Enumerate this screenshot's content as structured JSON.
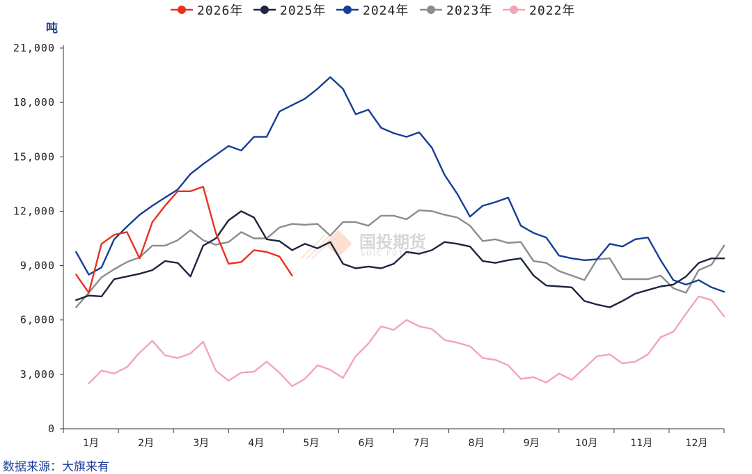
{
  "chart_data": {
    "type": "line",
    "ylabel": "吨",
    "ylim": [
      0,
      21000
    ],
    "yticks": [
      0,
      3000,
      6000,
      9000,
      12000,
      15000,
      18000,
      21000
    ],
    "ytick_labels": [
      "0",
      "3,000",
      "6,000",
      "9,000",
      "12,000",
      "15,000",
      "18,000",
      "21,000"
    ],
    "xlim": [
      0,
      52
    ],
    "month_labels": [
      "1月",
      "2月",
      "3月",
      "4月",
      "5月",
      "6月",
      "7月",
      "8月",
      "9月",
      "10月",
      "11月",
      "12月"
    ],
    "grid": false,
    "legend_position": "top",
    "series": [
      {
        "name": "2026年",
        "color": "#e8321e",
        "x": [
          1,
          2,
          3,
          4,
          5,
          6,
          7,
          8,
          9,
          10,
          11,
          12,
          13,
          14,
          15,
          16,
          17,
          18
        ],
        "values": [
          8500,
          7500,
          10200,
          10700,
          10850,
          9400,
          11400,
          12300,
          13100,
          13100,
          13350,
          10800,
          9100,
          9200,
          9850,
          9750,
          9500,
          8450
        ]
      },
      {
        "name": "2025年",
        "color": "#1c2541",
        "x": [
          1,
          2,
          3,
          4,
          5,
          6,
          7,
          8,
          9,
          10,
          11,
          12,
          13,
          14,
          15,
          16,
          17,
          18,
          19,
          20,
          21,
          22,
          23,
          24,
          25,
          26,
          27,
          28,
          29,
          30,
          31,
          32,
          33,
          34,
          35,
          36,
          37,
          38,
          39,
          40,
          41,
          42,
          43,
          44,
          45,
          46,
          47,
          48,
          49,
          50,
          51,
          52
        ],
        "values": [
          7100,
          7350,
          7300,
          8250,
          8400,
          8550,
          8750,
          9250,
          9150,
          8400,
          10100,
          10500,
          11500,
          12000,
          11650,
          10450,
          10350,
          9850,
          10200,
          9950,
          10300,
          9100,
          8850,
          8950,
          8850,
          9100,
          9750,
          9650,
          9850,
          10300,
          10200,
          10050,
          9250,
          9150,
          9300,
          9400,
          8450,
          7900,
          7850,
          7800,
          7050,
          6850,
          6700,
          7050,
          7450,
          7650,
          7850,
          7950,
          8400,
          9150,
          9400,
          9400
        ]
      },
      {
        "name": "2024年",
        "color": "#153e95",
        "x": [
          1,
          2,
          3,
          4,
          5,
          6,
          7,
          8,
          9,
          10,
          11,
          12,
          13,
          14,
          15,
          16,
          17,
          18,
          19,
          20,
          21,
          22,
          23,
          24,
          25,
          26,
          27,
          28,
          29,
          30,
          31,
          32,
          33,
          34,
          35,
          36,
          37,
          38,
          39,
          40,
          41,
          42,
          43,
          44,
          45,
          46,
          47,
          48,
          49,
          50,
          51,
          52
        ],
        "values": [
          9750,
          8500,
          8900,
          10450,
          11150,
          11800,
          12300,
          12750,
          13200,
          14050,
          14600,
          15100,
          15600,
          15350,
          16100,
          16100,
          17500,
          17850,
          18200,
          18750,
          19400,
          18750,
          17350,
          17600,
          16600,
          16300,
          16100,
          16350,
          15500,
          14000,
          12950,
          11700,
          12300,
          12500,
          12750,
          11200,
          10800,
          10550,
          9550,
          9400,
          9300,
          9350,
          10200,
          10050,
          10450,
          10550,
          9300,
          8200,
          7950,
          8200,
          7800,
          7550
        ]
      },
      {
        "name": "2023年",
        "color": "#8c8c8c",
        "x": [
          1,
          2,
          3,
          4,
          5,
          6,
          7,
          8,
          9,
          10,
          11,
          12,
          13,
          14,
          15,
          16,
          17,
          18,
          19,
          20,
          21,
          22,
          23,
          24,
          25,
          26,
          27,
          28,
          29,
          30,
          31,
          32,
          33,
          34,
          35,
          36,
          37,
          38,
          39,
          40,
          41,
          42,
          43,
          44,
          45,
          46,
          47,
          48,
          49,
          50,
          51,
          52
        ],
        "values": [
          6700,
          7500,
          8350,
          8800,
          9200,
          9450,
          10100,
          10100,
          10400,
          10950,
          10400,
          10150,
          10300,
          10850,
          10500,
          10500,
          11100,
          11300,
          11250,
          11300,
          10650,
          11400,
          11400,
          11200,
          11750,
          11750,
          11550,
          12050,
          12000,
          11800,
          11650,
          11200,
          10350,
          10450,
          10250,
          10300,
          9250,
          9150,
          8700,
          8450,
          8200,
          9350,
          9400,
          8250,
          8250,
          8250,
          8450,
          7750,
          7500,
          8750,
          9050,
          10100
        ]
      },
      {
        "name": "2022年",
        "color": "#f4a4b6",
        "x": [
          2,
          3,
          4,
          5,
          6,
          7,
          8,
          9,
          10,
          11,
          12,
          13,
          14,
          15,
          16,
          17,
          18,
          19,
          20,
          21,
          22,
          23,
          24,
          25,
          26,
          27,
          28,
          29,
          30,
          31,
          32,
          33,
          34,
          35,
          36,
          37,
          38,
          39,
          40,
          41,
          42,
          43,
          44,
          45,
          46,
          47,
          48,
          49,
          50,
          51,
          52
        ],
        "values": [
          2500,
          3200,
          3050,
          3400,
          4200,
          4850,
          4050,
          3900,
          4150,
          4800,
          3200,
          2650,
          3100,
          3150,
          3700,
          3100,
          2350,
          2750,
          3500,
          3250,
          2800,
          4000,
          4700,
          5650,
          5450,
          6000,
          5650,
          5500,
          4900,
          4750,
          4550,
          3900,
          3800,
          3500,
          2750,
          2850,
          2550,
          3050,
          2700,
          3350,
          4000,
          4100,
          3600,
          3700,
          4100,
          5050,
          5350,
          6350,
          7300,
          7100,
          6200
        ]
      }
    ]
  },
  "watermark": {
    "cn": "国投期货",
    "en": "SDIC FUTURES"
  },
  "source": "数据来源：大旗来有"
}
